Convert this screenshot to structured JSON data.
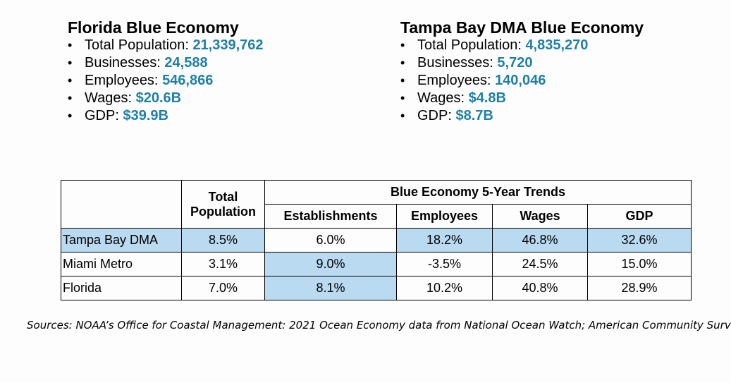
{
  "florida": {
    "title": "Florida Blue Economy",
    "items": [
      {
        "label": "Total Population: ",
        "value": "21,339,762"
      },
      {
        "label": "Businesses: ",
        "value": "24,588"
      },
      {
        "label": "Employees: ",
        "value": "546,866"
      },
      {
        "label": "Wages: ",
        "value": "$20.6B"
      },
      {
        "label": "GDP: ",
        "value": "$39.9B"
      }
    ]
  },
  "tampa": {
    "title": "Tampa Bay DMA Blue Economy",
    "items": [
      {
        "label": "Total Population: ",
        "value": "4,835,270"
      },
      {
        "label": "Businesses: ",
        "value": "5,720"
      },
      {
        "label": "Employees: ",
        "value": "140,046"
      },
      {
        "label": "Wages: ",
        "value": "$4.8B"
      },
      {
        "label": "GDP: ",
        "value": "$8.7B"
      }
    ]
  },
  "bullet": "•",
  "table": {
    "population_header_line1": "Total",
    "population_header_line2": "Population",
    "group_header": "Blue Economy 5-Year Trends",
    "columns": [
      "Establishments",
      "Employees",
      "Wages",
      "GDP"
    ],
    "rows": [
      {
        "name": "Tampa Bay DMA",
        "values": [
          "8.5%",
          "6.0%",
          "18.2%",
          "46.8%",
          "32.6%"
        ]
      },
      {
        "name": "Miami Metro",
        "values": [
          "3.1%",
          "9.0%",
          "-3.5%",
          "24.5%",
          "15.0%"
        ]
      },
      {
        "name": "Florida",
        "values": [
          "7.0%",
          "8.1%",
          "10.2%",
          "40.8%",
          "28.9%"
        ]
      }
    ]
  },
  "highlight_color": "#b9daf0",
  "value_color": "#1f7fa6",
  "sources": "Sources: NOAA’s Office for Coastal Management: 2021 Ocean Economy data from National Ocean Watch; American Community Surv"
}
